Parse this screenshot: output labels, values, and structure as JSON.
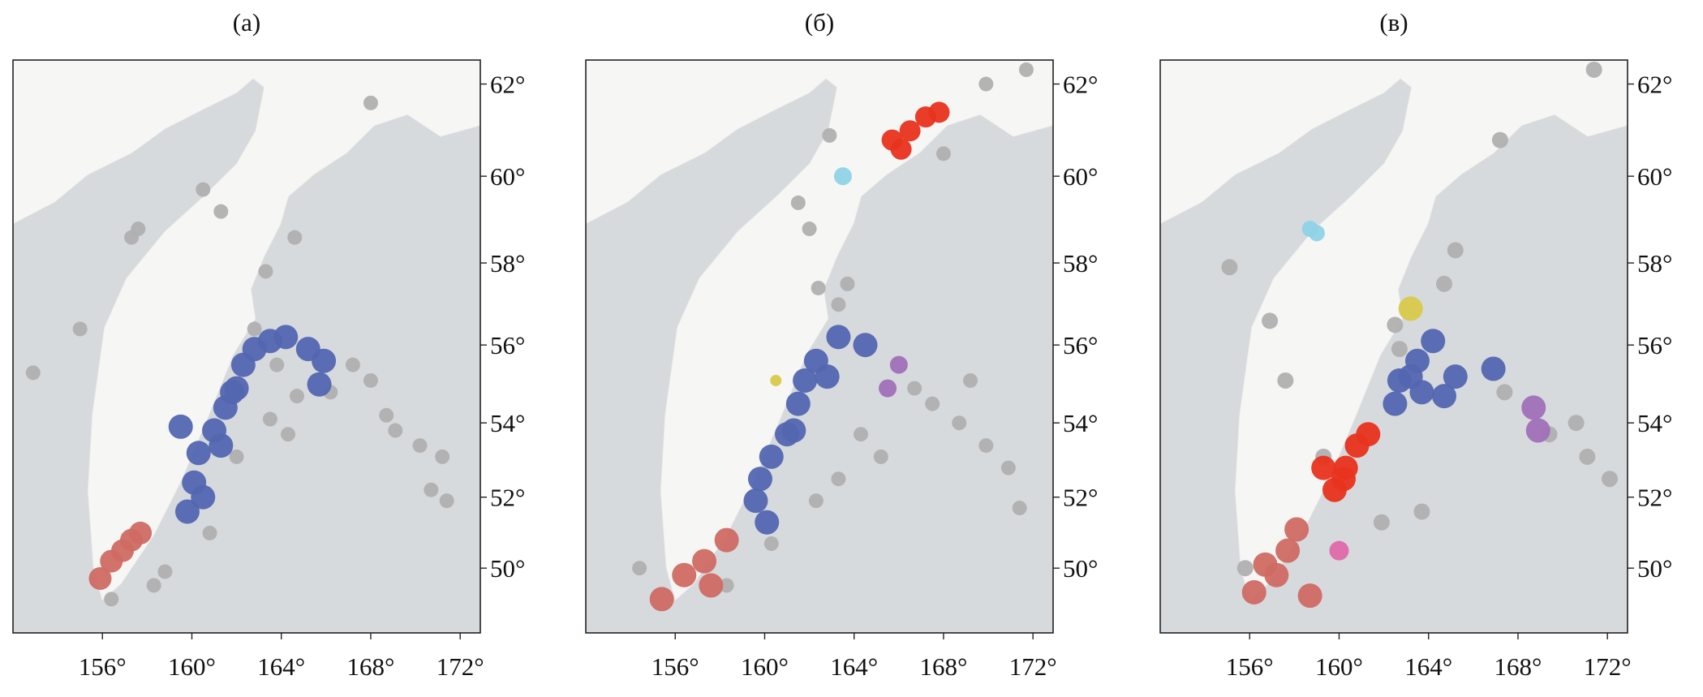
{
  "chart_data": [
    {
      "type": "scatter",
      "title": "(а)",
      "y_scale": "mercator",
      "xlim": [
        152,
        172.9
      ],
      "ylim": [
        48.1,
        62.5
      ],
      "xticks": [
        {
          "value": 156,
          "label": "156°"
        },
        {
          "value": 160,
          "label": "160°"
        },
        {
          "value": 164,
          "label": "164°"
        },
        {
          "value": 168,
          "label": "168°"
        },
        {
          "value": 172,
          "label": "172°"
        }
      ],
      "yticks": [
        {
          "value": 50,
          "label": "50°"
        },
        {
          "value": 52,
          "label": "52°"
        },
        {
          "value": 54,
          "label": "54°"
        },
        {
          "value": 56,
          "label": "56°"
        },
        {
          "value": 58,
          "label": "58°"
        },
        {
          "value": 60,
          "label": "60°"
        },
        {
          "value": 62,
          "label": "62°"
        }
      ],
      "series": [
        {
          "color": "#b0b0b0",
          "size": 9,
          "x": [
            157.6,
            157.3,
            161.3,
            160.5,
            164.6,
            163.3,
            168.0,
            155.0,
            152.9,
            162.8,
            163.8,
            164.7,
            166.2,
            168.0,
            168.7,
            169.1,
            170.2,
            171.2,
            170.7,
            171.4,
            162.0,
            160.8,
            158.8,
            158.3,
            156.4,
            163.5,
            164.3,
            167.2
          ],
          "y": [
            58.8,
            58.6,
            59.2,
            59.7,
            58.6,
            57.8,
            61.6,
            56.4,
            55.3,
            56.4,
            55.5,
            54.7,
            54.8,
            55.1,
            54.2,
            53.8,
            53.4,
            53.1,
            52.2,
            51.9,
            53.1,
            51.0,
            49.9,
            49.5,
            49.1,
            54.1,
            53.7,
            55.5
          ]
        },
        {
          "color": "#5366b0",
          "size": 15,
          "x": [
            159.5,
            159.8,
            160.1,
            160.3,
            161.0,
            161.5,
            162.0,
            162.3,
            162.8,
            163.5,
            164.2,
            165.2,
            165.9,
            165.7,
            160.5,
            161.8,
            161.3
          ],
          "y": [
            53.9,
            51.6,
            52.4,
            53.2,
            53.8,
            54.4,
            54.9,
            55.5,
            55.9,
            56.1,
            56.2,
            55.9,
            55.6,
            55.0,
            52.0,
            54.8,
            53.4
          ]
        },
        {
          "color": "#cf6a63",
          "size": 14,
          "x": [
            155.9,
            156.4,
            156.9,
            157.3,
            157.7
          ],
          "y": [
            49.7,
            50.2,
            50.5,
            50.8,
            51.0
          ]
        }
      ]
    },
    {
      "type": "scatter",
      "title": "(б)",
      "y_scale": "mercator",
      "xlim": [
        152,
        172.9
      ],
      "ylim": [
        48.1,
        62.5
      ],
      "xticks": [
        {
          "value": 156,
          "label": "156°"
        },
        {
          "value": 160,
          "label": "160°"
        },
        {
          "value": 164,
          "label": "164°"
        },
        {
          "value": 168,
          "label": "168°"
        },
        {
          "value": 172,
          "label": "172°"
        }
      ],
      "yticks": [
        {
          "value": 50,
          "label": "50°"
        },
        {
          "value": 52,
          "label": "52°"
        },
        {
          "value": 54,
          "label": "54°"
        },
        {
          "value": 56,
          "label": "56°"
        },
        {
          "value": 58,
          "label": "58°"
        },
        {
          "value": 60,
          "label": "60°"
        },
        {
          "value": 62,
          "label": "62°"
        }
      ],
      "series": [
        {
          "color": "#b0b0b0",
          "size": 9,
          "x": [
            162.9,
            169.9,
            171.7,
            161.5,
            162.0,
            163.7,
            162.4,
            163.3,
            168.0,
            166.7,
            167.5,
            168.7,
            169.9,
            170.9,
            171.4,
            165.2,
            164.3,
            163.3,
            162.3,
            160.3,
            158.3,
            154.4,
            169.2
          ],
          "y": [
            60.9,
            62.0,
            62.3,
            59.4,
            58.8,
            57.5,
            57.4,
            57.0,
            60.5,
            54.9,
            54.5,
            54.0,
            53.4,
            52.8,
            51.7,
            53.1,
            53.7,
            52.5,
            51.9,
            50.7,
            49.5,
            50.0,
            55.1
          ]
        },
        {
          "color": "#5366b0",
          "size": 15,
          "x": [
            163.3,
            162.3,
            161.8,
            161.5,
            164.5,
            162.8,
            161.0,
            160.3,
            159.8,
            159.6,
            160.1,
            161.3
          ],
          "y": [
            56.2,
            55.6,
            55.1,
            54.5,
            56.0,
            55.2,
            53.7,
            53.1,
            52.5,
            51.9,
            51.3,
            53.8
          ]
        },
        {
          "color": "#cf6a63",
          "size": 15,
          "x": [
            155.4,
            156.4,
            157.3,
            158.3,
            157.6
          ],
          "y": [
            49.1,
            49.8,
            50.2,
            50.8,
            49.5
          ]
        },
        {
          "color": "#e8331e",
          "size": 13,
          "x": [
            165.7,
            166.5,
            167.2,
            167.8,
            166.1
          ],
          "y": [
            60.8,
            61.0,
            61.3,
            61.4,
            60.6
          ]
        },
        {
          "color": "#8fd3e6",
          "size": 11,
          "x": [
            163.5
          ],
          "y": [
            60.0
          ]
        },
        {
          "color": "#d8c94a",
          "size": 7,
          "x": [
            160.5
          ],
          "y": [
            55.1
          ]
        },
        {
          "color": "#a070b8",
          "size": 11,
          "x": [
            166.0,
            165.5
          ],
          "y": [
            55.5,
            54.9
          ]
        }
      ]
    },
    {
      "type": "scatter",
      "title": "(в)",
      "y_scale": "mercator",
      "xlim": [
        152,
        172.9
      ],
      "ylim": [
        48.1,
        62.5
      ],
      "xticks": [
        {
          "value": 156,
          "label": "156°"
        },
        {
          "value": 160,
          "label": "160°"
        },
        {
          "value": 164,
          "label": "164°"
        },
        {
          "value": 168,
          "label": "168°"
        },
        {
          "value": 172,
          "label": "172°"
        }
      ],
      "yticks": [
        {
          "value": 50,
          "label": "50°"
        },
        {
          "value": 52,
          "label": "52°"
        },
        {
          "value": 54,
          "label": "54°"
        },
        {
          "value": 56,
          "label": "56°"
        },
        {
          "value": 58,
          "label": "58°"
        },
        {
          "value": 60,
          "label": "60°"
        },
        {
          "value": 62,
          "label": "62°"
        }
      ],
      "series": [
        {
          "color": "#b0b0b0",
          "size": 10,
          "x": [
            171.4,
            167.2,
            155.1,
            157.6,
            156.9,
            155.8,
            162.7,
            163.7,
            161.9,
            170.6,
            171.1,
            172.1,
            169.4,
            167.4,
            159.3,
            162.5,
            164.7,
            165.2
          ],
          "y": [
            62.3,
            60.8,
            57.9,
            55.1,
            56.6,
            50.0,
            55.9,
            51.6,
            51.3,
            54.0,
            53.1,
            52.5,
            53.7,
            54.8,
            53.1,
            56.5,
            57.5,
            58.3
          ]
        },
        {
          "color": "#5366b0",
          "size": 15,
          "x": [
            162.7,
            163.5,
            164.2,
            165.2,
            164.7,
            163.7,
            166.9,
            162.5,
            163.2
          ],
          "y": [
            55.1,
            55.6,
            56.1,
            55.2,
            54.7,
            54.8,
            55.4,
            54.5,
            55.2
          ]
        },
        {
          "color": "#cf6a63",
          "size": 15,
          "x": [
            156.2,
            157.2,
            157.7,
            158.1,
            158.7,
            156.7
          ],
          "y": [
            49.3,
            49.8,
            50.5,
            51.1,
            49.2,
            50.1
          ]
        },
        {
          "color": "#e8331e",
          "size": 15,
          "x": [
            159.8,
            160.3,
            160.8,
            161.3,
            160.2,
            159.3
          ],
          "y": [
            52.2,
            52.8,
            53.4,
            53.7,
            52.5,
            52.8
          ]
        },
        {
          "color": "#8fd3e6",
          "size": 10,
          "x": [
            158.7,
            159.0
          ],
          "y": [
            58.8,
            58.7
          ]
        },
        {
          "color": "#d8c94a",
          "size": 15,
          "x": [
            163.2
          ],
          "y": [
            56.9
          ]
        },
        {
          "color": "#e06aa8",
          "size": 12,
          "x": [
            160.0
          ],
          "y": [
            50.5
          ]
        },
        {
          "color": "#a070b8",
          "size": 15,
          "x": [
            168.7,
            168.9
          ],
          "y": [
            54.4,
            53.8
          ]
        }
      ]
    }
  ]
}
